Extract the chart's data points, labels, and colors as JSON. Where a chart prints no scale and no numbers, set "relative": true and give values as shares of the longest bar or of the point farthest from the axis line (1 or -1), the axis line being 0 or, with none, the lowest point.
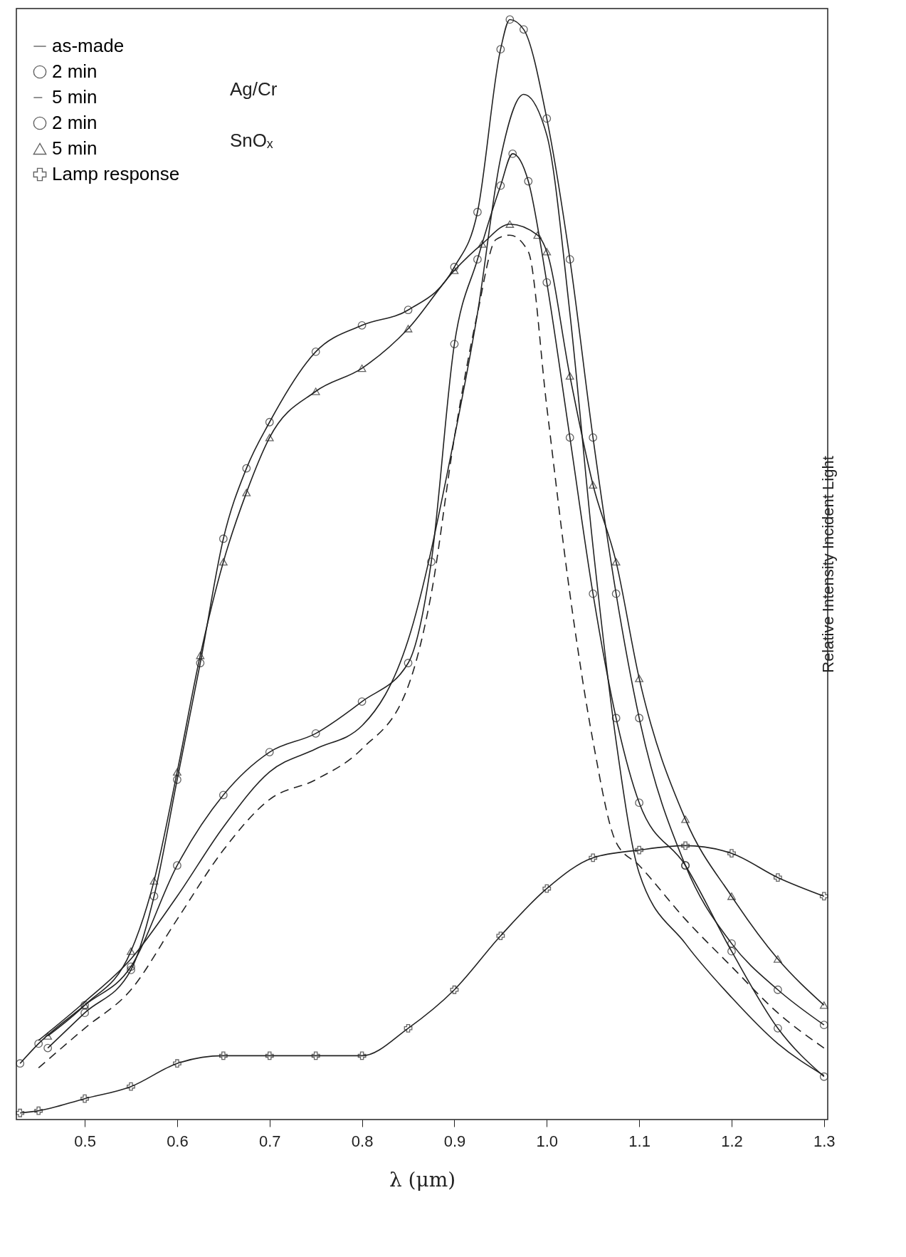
{
  "chart_data": {
    "type": "line",
    "relative": true,
    "xlabel": "λ (μm)",
    "ylabel": "Relative Intensity Incident Light",
    "xlim": [
      0.426,
      1.304
    ],
    "xticks": [
      0.5,
      0.6,
      0.7,
      0.8,
      0.9,
      {
        "value": 1,
        "label": "1.0"
      },
      1.1,
      1.2,
      1.3
    ],
    "grid": false,
    "legend": "top left",
    "annotations": [
      "Ag/Cr",
      "SnOₓ"
    ],
    "series": [
      {
        "name": "as-made",
        "color": "#222222",
        "marker": "none",
        "line_style": "solid",
        "x": [
          0.45,
          0.5,
          0.55,
          0.6,
          0.65,
          0.7,
          0.75,
          0.8,
          0.85,
          0.9,
          0.925,
          0.95,
          0.975,
          1.0,
          1.025,
          1.05,
          1.075,
          1.1,
          1.15,
          1.2,
          1.25,
          1.3
        ],
        "values": [
          0.072,
          0.107,
          0.146,
          0.203,
          0.266,
          0.316,
          0.337,
          0.358,
          0.436,
          0.62,
          0.733,
          0.874,
          0.932,
          0.895,
          0.733,
          0.521,
          0.344,
          0.224,
          0.16,
          0.111,
          0.069,
          0.04
        ]
      },
      {
        "name": "2 min",
        "color": "#222222",
        "marker": "circle",
        "line_style": "solid",
        "x": [
          0.43,
          0.45,
          0.5,
          0.55,
          0.6,
          0.65,
          0.7,
          0.75,
          0.8,
          0.85,
          0.875,
          0.9,
          0.925,
          0.95,
          0.963,
          0.98,
          1.0,
          1.025,
          1.05,
          1.075,
          1.1,
          1.15,
          1.2,
          1.25,
          1.3
        ],
        "values": [
          0.051,
          0.069,
          0.104,
          0.139,
          0.231,
          0.295,
          0.334,
          0.351,
          0.38,
          0.415,
          0.507,
          0.705,
          0.782,
          0.849,
          0.878,
          0.853,
          0.761,
          0.62,
          0.478,
          0.365,
          0.288,
          0.231,
          0.153,
          0.083,
          0.039
        ]
      },
      {
        "name": "5 min",
        "color": "#222222",
        "marker": "none",
        "line_style": "dashed",
        "x": [
          0.45,
          0.5,
          0.55,
          0.6,
          0.65,
          0.7,
          0.75,
          0.8,
          0.85,
          0.875,
          0.9,
          0.925,
          0.945,
          0.96,
          0.98,
          1.0,
          1.025,
          1.05,
          1.075,
          1.1,
          1.15,
          1.2,
          1.25,
          1.3
        ],
        "values": [
          0.047,
          0.083,
          0.118,
          0.182,
          0.245,
          0.291,
          0.309,
          0.337,
          0.394,
          0.478,
          0.62,
          0.733,
          0.8,
          0.804,
          0.789,
          0.648,
          0.478,
          0.344,
          0.252,
          0.231,
          0.182,
          0.139,
          0.097,
          0.065
        ]
      },
      {
        "name": "2 min",
        "color": "#222222",
        "marker": "circle",
        "line_style": "solid",
        "x": [
          0.46,
          0.5,
          0.55,
          0.575,
          0.6,
          0.625,
          0.65,
          0.675,
          0.7,
          0.75,
          0.8,
          0.85,
          0.9,
          0.925,
          0.95,
          0.96,
          0.975,
          1.0,
          1.025,
          1.05,
          1.075,
          1.1,
          1.15,
          1.2,
          1.25,
          1.3
        ],
        "values": [
          0.065,
          0.097,
          0.136,
          0.203,
          0.309,
          0.415,
          0.528,
          0.592,
          0.634,
          0.698,
          0.722,
          0.736,
          0.775,
          0.825,
          0.973,
          1.0,
          0.991,
          0.91,
          0.782,
          0.62,
          0.478,
          0.365,
          0.231,
          0.16,
          0.118,
          0.086
        ]
      },
      {
        "name": "5 min",
        "color": "#222222",
        "marker": "triangle",
        "line_style": "solid",
        "x": [
          0.46,
          0.5,
          0.55,
          0.575,
          0.6,
          0.625,
          0.65,
          0.675,
          0.7,
          0.75,
          0.8,
          0.85,
          0.9,
          0.93,
          0.96,
          0.99,
          1.0,
          1.025,
          1.05,
          1.075,
          1.1,
          1.15,
          1.2,
          1.25,
          1.3
        ],
        "values": [
          0.076,
          0.104,
          0.153,
          0.217,
          0.316,
          0.422,
          0.507,
          0.57,
          0.62,
          0.662,
          0.683,
          0.719,
          0.772,
          0.796,
          0.814,
          0.804,
          0.789,
          0.676,
          0.577,
          0.507,
          0.401,
          0.273,
          0.203,
          0.146,
          0.104
        ]
      },
      {
        "name": "Lamp response",
        "color": "#222222",
        "marker": "cross",
        "line_style": "solid",
        "x": [
          0.43,
          0.45,
          0.5,
          0.55,
          0.6,
          0.65,
          0.7,
          0.75,
          0.8,
          0.85,
          0.9,
          0.95,
          1.0,
          1.05,
          1.1,
          1.15,
          1.2,
          1.25,
          1.3
        ],
        "values": [
          0.006,
          0.008,
          0.019,
          0.03,
          0.051,
          0.058,
          0.058,
          0.058,
          0.058,
          0.083,
          0.118,
          0.167,
          0.21,
          0.238,
          0.245,
          0.249,
          0.242,
          0.22,
          0.203
        ]
      }
    ]
  }
}
